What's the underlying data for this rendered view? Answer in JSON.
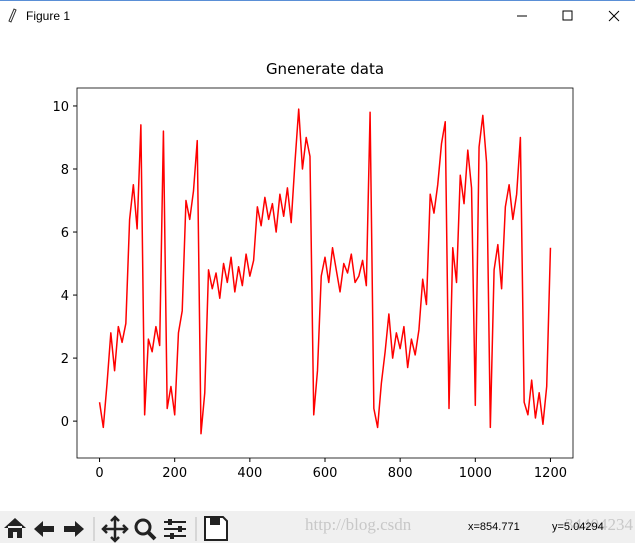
{
  "window_title": "Figure 1",
  "status": {
    "x": "x=854.771",
    "y": "y=5.04294"
  },
  "watermark": [
    "http://blog.csdn",
    "34404234"
  ],
  "chart_data": {
    "type": "line",
    "title": "Gnenerate data",
    "color": "#ff0000",
    "x": [
      0,
      10,
      20,
      30,
      40,
      50,
      60,
      70,
      80,
      90,
      100,
      110,
      120,
      130,
      140,
      150,
      160,
      170,
      180,
      190,
      200,
      210,
      220,
      230,
      240,
      250,
      260,
      270,
      280,
      290,
      300,
      310,
      320,
      330,
      340,
      350,
      360,
      370,
      380,
      390,
      400,
      410,
      420,
      430,
      440,
      450,
      460,
      470,
      480,
      490,
      500,
      510,
      520,
      530,
      540,
      550,
      560,
      570,
      580,
      590,
      600,
      610,
      620,
      630,
      640,
      650,
      660,
      670,
      680,
      690,
      700,
      710,
      720,
      730,
      740,
      750,
      760,
      770,
      780,
      790,
      800,
      810,
      820,
      830,
      840,
      850,
      860,
      870,
      880,
      890,
      900,
      910,
      920,
      930,
      940,
      950,
      960,
      970,
      980,
      990,
      1000,
      1010,
      1020,
      1030,
      1040,
      1050,
      1060,
      1070,
      1080,
      1090,
      1100,
      1110,
      1120,
      1130,
      1140,
      1150,
      1160,
      1170,
      1180,
      1190,
      1200
    ],
    "values": [
      0.6,
      -0.2,
      1.2,
      2.8,
      1.6,
      3.0,
      2.5,
      3.1,
      6.4,
      7.5,
      6.1,
      9.4,
      0.2,
      2.6,
      2.2,
      3.0,
      2.4,
      9.2,
      0.4,
      1.1,
      0.2,
      2.8,
      3.5,
      7.0,
      6.4,
      7.3,
      8.9,
      -0.4,
      0.9,
      4.8,
      4.2,
      4.7,
      3.9,
      5.0,
      4.4,
      5.2,
      4.1,
      4.9,
      4.3,
      5.3,
      4.6,
      5.1,
      6.8,
      6.2,
      7.1,
      6.4,
      6.9,
      6.0,
      7.2,
      6.5,
      7.4,
      6.3,
      8.2,
      9.9,
      8.0,
      9.0,
      8.4,
      0.2,
      1.6,
      4.6,
      5.2,
      4.4,
      5.5,
      4.8,
      4.1,
      5.0,
      4.7,
      5.3,
      4.4,
      4.6,
      5.1,
      4.3,
      9.8,
      0.4,
      -0.2,
      1.2,
      2.2,
      3.4,
      2.0,
      2.8,
      2.3,
      3.0,
      1.7,
      2.6,
      2.1,
      2.9,
      4.5,
      3.7,
      7.2,
      6.6,
      7.5,
      8.8,
      9.5,
      0.4,
      5.5,
      4.4,
      7.8,
      6.9,
      8.6,
      7.4,
      0.5,
      8.7,
      9.7,
      8.2,
      -0.2,
      4.8,
      5.6,
      4.2,
      6.8,
      7.5,
      6.4,
      7.2,
      9.0,
      0.6,
      0.2,
      1.3,
      0.1,
      0.9,
      -0.1,
      1.1,
      5.5
    ],
    "xlim": [
      -60,
      1260
    ],
    "xticks": [
      0,
      200,
      400,
      600,
      800,
      1000,
      1200
    ],
    "ylim": [
      -1.17,
      10.57
    ],
    "yticks": [
      0,
      2,
      4,
      6,
      8,
      10
    ]
  }
}
